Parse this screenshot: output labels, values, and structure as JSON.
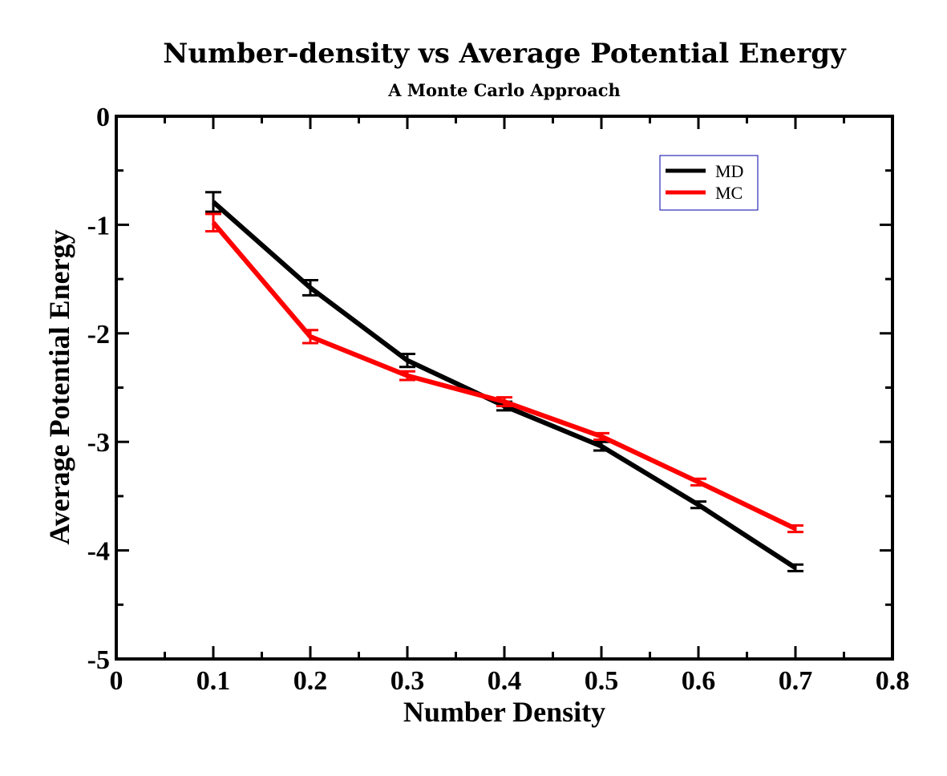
{
  "chart_data": {
    "type": "line",
    "title": "Number-density  vs Average Potential Energy",
    "subtitle": "A Monte Carlo Approach",
    "xlabel": "Number Density",
    "ylabel": "Average Potential Energy",
    "xlim": [
      0,
      0.8
    ],
    "ylim": [
      -5,
      0
    ],
    "x_ticks": [
      0,
      0.1,
      0.2,
      0.3,
      0.4,
      0.5,
      0.6,
      0.7,
      0.8
    ],
    "x_tick_labels": [
      "0",
      "0.1",
      "0.2",
      "0.3",
      "0.4",
      "0.5",
      "0.6",
      "0.7",
      "0.8"
    ],
    "y_ticks": [
      0,
      -1,
      -2,
      -3,
      -4,
      -5
    ],
    "y_tick_labels": [
      "0",
      "-1",
      "-2",
      "-3",
      "-4",
      "-5"
    ],
    "grid": false,
    "legend_position": "top-right",
    "series": [
      {
        "name": "MD",
        "color": "#000000",
        "x": [
          0.1,
          0.2,
          0.3,
          0.4,
          0.5,
          0.6,
          0.7
        ],
        "values": [
          -0.79,
          -1.58,
          -2.25,
          -2.67,
          -3.04,
          -3.58,
          -4.16
        ],
        "errors": [
          0.09,
          0.07,
          0.06,
          0.04,
          0.04,
          0.03,
          0.03
        ]
      },
      {
        "name": "MC",
        "color": "#ff0000",
        "x": [
          0.1,
          0.2,
          0.3,
          0.4,
          0.5,
          0.6,
          0.7
        ],
        "values": [
          -0.98,
          -2.03,
          -2.39,
          -2.63,
          -2.95,
          -3.37,
          -3.8
        ],
        "errors": [
          0.08,
          0.06,
          0.04,
          0.04,
          0.03,
          0.03,
          0.03
        ]
      }
    ]
  }
}
